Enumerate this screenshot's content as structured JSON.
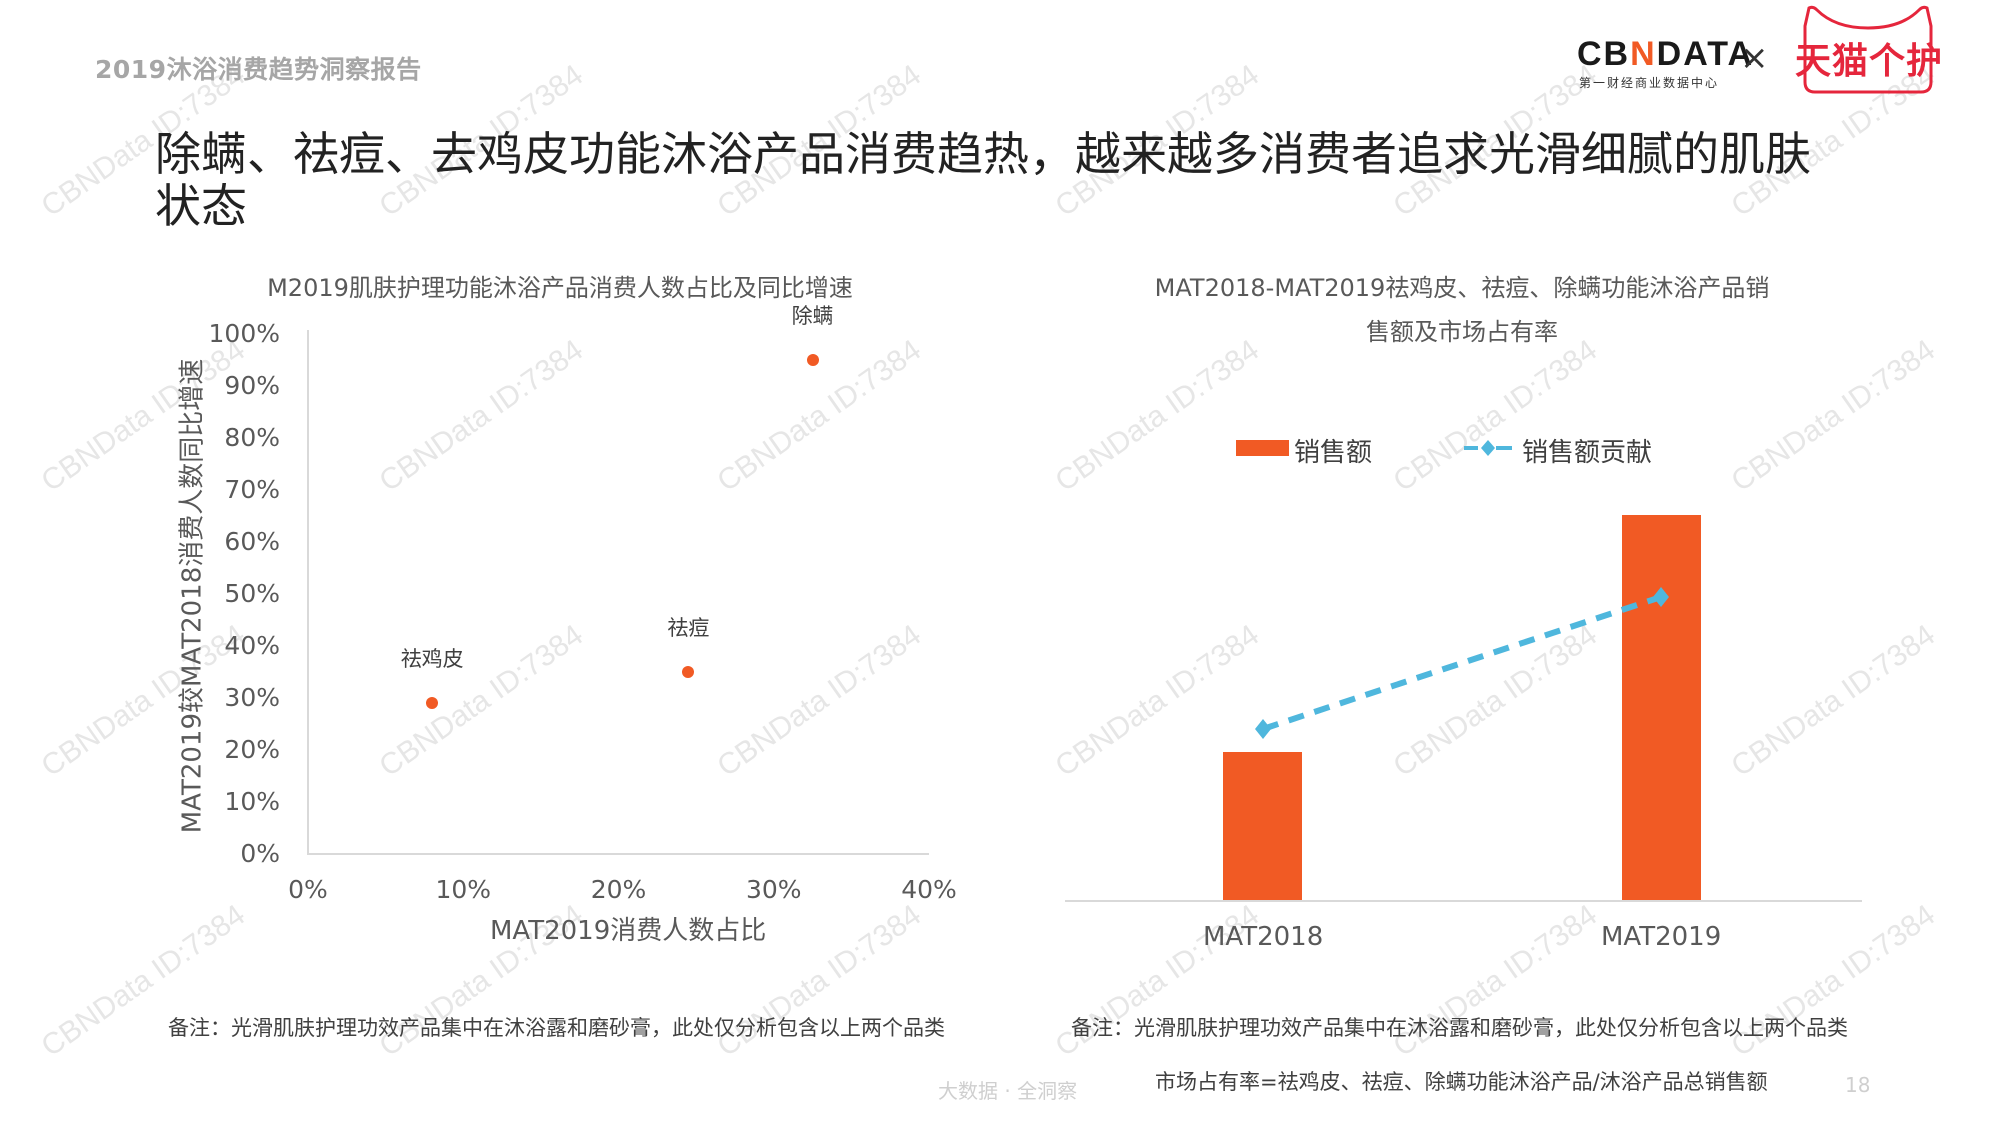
{
  "header": {
    "report_title": "2019沐浴消费趋势洞察报告",
    "logo_primary": {
      "prefix": "CB",
      "mark": "N",
      "suffix": "DATA",
      "subtitle": "第一财经商业数据中心"
    },
    "logo_separator": "×",
    "logo_partner": "天猫个护"
  },
  "page": {
    "title": "除螨、祛痘、去鸡皮功能沐浴产品消费趋热，越来越多消费者追求光滑细腻的肌肤状态",
    "title_line1": "除螨、祛痘、去鸡皮功能沐浴产品消费趋热，越来越多消费者追求光滑细腻的肌肤",
    "title_line2": "状态",
    "footer_slogan": "大数据 · 全洞察",
    "page_number": "18",
    "watermark": "CBNData ID:7384"
  },
  "left_chart": {
    "title": "M2019肌肤护理功能沐浴产品消费人数占比及同比增速",
    "y_axis_title": "MAT2019较MAT2018消费人数同比增速",
    "x_axis_title": "MAT2019消费人数占比",
    "y_ticks": [
      "100%",
      "90%",
      "80%",
      "70%",
      "60%",
      "50%",
      "40%",
      "30%",
      "20%",
      "10%",
      "0%"
    ],
    "x_ticks": [
      "0%",
      "10%",
      "20%",
      "30%",
      "40%"
    ],
    "points": [
      {
        "label": "祛鸡皮",
        "x": "8%",
        "y": "29%"
      },
      {
        "label": "祛痘",
        "x": "24.5%",
        "y": "35%"
      },
      {
        "label": "除螨",
        "x": "32.5%",
        "y": "95%"
      }
    ],
    "note": "备注：光滑肌肤护理功效产品集中在沐浴露和磨砂膏，此处仅分析包含以上两个品类"
  },
  "right_chart": {
    "title_line1": "MAT2018-MAT2019祛鸡皮、祛痘、除螨功能沐浴产品销",
    "title_line2": "售额及市场占有率",
    "legend": [
      {
        "label": "销售额",
        "type": "bar",
        "color": "#f15a24"
      },
      {
        "label": "销售额贡献",
        "type": "line",
        "color": "#4fb7dd"
      }
    ],
    "categories": [
      "MAT2018",
      "MAT2019"
    ],
    "note1": "备注：光滑肌肤护理功效产品集中在沐浴露和磨砂膏，此处仅分析包含以上两个品类",
    "note2": "市场占有率=祛鸡皮、祛痘、除螨功能沐浴产品/沐浴产品总销售额"
  },
  "colors": {
    "accent_orange": "#f15a24",
    "line_blue": "#4fb7dd",
    "tmall_red": "#e5263c",
    "axis_gray": "#d9d9d9"
  },
  "chart_data": [
    {
      "type": "scatter",
      "title": "M2019肌肤护理功能沐浴产品消费人数占比及同比增速",
      "xlabel": "MAT2019消费人数占比",
      "ylabel": "MAT2019较MAT2018消费人数同比增速",
      "xlim": [
        0,
        40
      ],
      "ylim": [
        0,
        100
      ],
      "x_ticks": [
        "0%",
        "10%",
        "20%",
        "30%",
        "40%"
      ],
      "y_ticks": [
        "0%",
        "10%",
        "20%",
        "30%",
        "40%",
        "50%",
        "60%",
        "70%",
        "80%",
        "90%",
        "100%"
      ],
      "grid": false,
      "points": [
        {
          "label": "祛鸡皮",
          "x": 8,
          "y": 29
        },
        {
          "label": "祛痘",
          "x": 24.5,
          "y": 35
        },
        {
          "label": "除螨",
          "x": 32.5,
          "y": 95
        }
      ]
    },
    {
      "type": "bar",
      "title": "MAT2018-MAT2019祛鸡皮、祛痘、除螨功能沐浴产品销售额及市场占有率",
      "categories": [
        "MAT2018",
        "MAT2019"
      ],
      "series": [
        {
          "name": "销售额",
          "type": "bar",
          "values": [
            38,
            100
          ],
          "unit": "relative (no axis shown)"
        },
        {
          "name": "销售额贡献",
          "type": "line",
          "style": "dashed",
          "marker": "diamond",
          "values": [
            58,
            93
          ],
          "unit": "relative (no axis shown)"
        }
      ],
      "legend_position": "top",
      "grid": false,
      "y_axis_visible": false
    }
  ]
}
